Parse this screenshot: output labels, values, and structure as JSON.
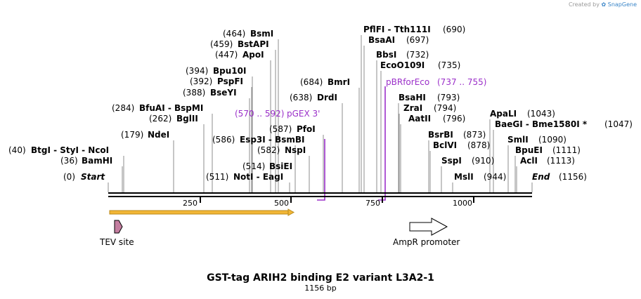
{
  "brand": {
    "created_by": "Created by",
    "name": "SnapGene"
  },
  "title": "GST-tag ARIH2 binding E2 variant L3A2-1",
  "length_label": "1156 bp",
  "sequence_length": 1156,
  "ruler": {
    "ticks": [
      250,
      500,
      750,
      1000
    ],
    "tick_labels": [
      "250",
      "500",
      "750",
      "1000"
    ]
  },
  "sites": [
    {
      "name": "Start",
      "pos": "(0)"
    },
    {
      "name": "BamHI",
      "pos": "(36)"
    },
    {
      "name": "BtgI - StyI - NcoI",
      "pos": "(40)"
    },
    {
      "name": "NdeI",
      "pos": "(179)"
    },
    {
      "name": "BglII",
      "pos": "(262)"
    },
    {
      "name": "BfuAI - BspMI",
      "pos": "(284)"
    },
    {
      "name": "BseYI",
      "pos": "(388)"
    },
    {
      "name": "PspFI",
      "pos": "(392)"
    },
    {
      "name": "Bpu10I",
      "pos": "(394)"
    },
    {
      "name": "ApoI",
      "pos": "(447)"
    },
    {
      "name": "BstAPI",
      "pos": "(459)"
    },
    {
      "name": "BsmI",
      "pos": "(464)"
    },
    {
      "name": "NotI - EagI",
      "pos": "(511)"
    },
    {
      "name": "BsiEI",
      "pos": "(514)"
    },
    {
      "name": "NspI",
      "pos": "(582)"
    },
    {
      "name": "Esp3I - BsmBI",
      "pos": "(586)"
    },
    {
      "name": "PfoI",
      "pos": "(587)"
    },
    {
      "name": "DrdI",
      "pos": "(638)"
    },
    {
      "name": "BmrI",
      "pos": "(684)"
    },
    {
      "name": "PflFI - Tth111I",
      "pos": "(690)"
    },
    {
      "name": "BsaAI",
      "pos": "(697)"
    },
    {
      "name": "BbsI",
      "pos": "(732)"
    },
    {
      "name": "EcoO109I",
      "pos": "(735)"
    },
    {
      "name": "BsaHI",
      "pos": "(793)"
    },
    {
      "name": "ZraI",
      "pos": "(794)"
    },
    {
      "name": "AatII",
      "pos": "(796)"
    },
    {
      "name": "BsrBI",
      "pos": "(873)"
    },
    {
      "name": "BclVI",
      "pos": "(878)"
    },
    {
      "name": "SspI",
      "pos": "(910)"
    },
    {
      "name": "MslI",
      "pos": "(944)"
    },
    {
      "name": "ApaLI",
      "pos": "(1043)"
    },
    {
      "name": "BaeGI - Bme1580I *",
      "pos": "(1047)"
    },
    {
      "name": "SmlI",
      "pos": "(1090)"
    },
    {
      "name": "BpuEI",
      "pos": "(1111)"
    },
    {
      "name": "AclI",
      "pos": "(1113)"
    },
    {
      "name": "End",
      "pos": "(1156)"
    }
  ],
  "primers": [
    {
      "range": "(570 .. 592)",
      "name": "pGEX 3'"
    },
    {
      "range": "(737 .. 755)",
      "name": "pBRforEco"
    }
  ],
  "features": [
    {
      "name": "GST tag",
      "label": ""
    },
    {
      "name": "TEV site",
      "label": "TEV site"
    },
    {
      "name": "AmpR promoter",
      "label": "AmpR promoter"
    }
  ],
  "colors": {
    "backbone": "#000000",
    "primer": "#9b30c9",
    "orf_fill": "#f2b636",
    "tev_fill": "#c47ea0",
    "promoter_fill": "#ffffff"
  }
}
